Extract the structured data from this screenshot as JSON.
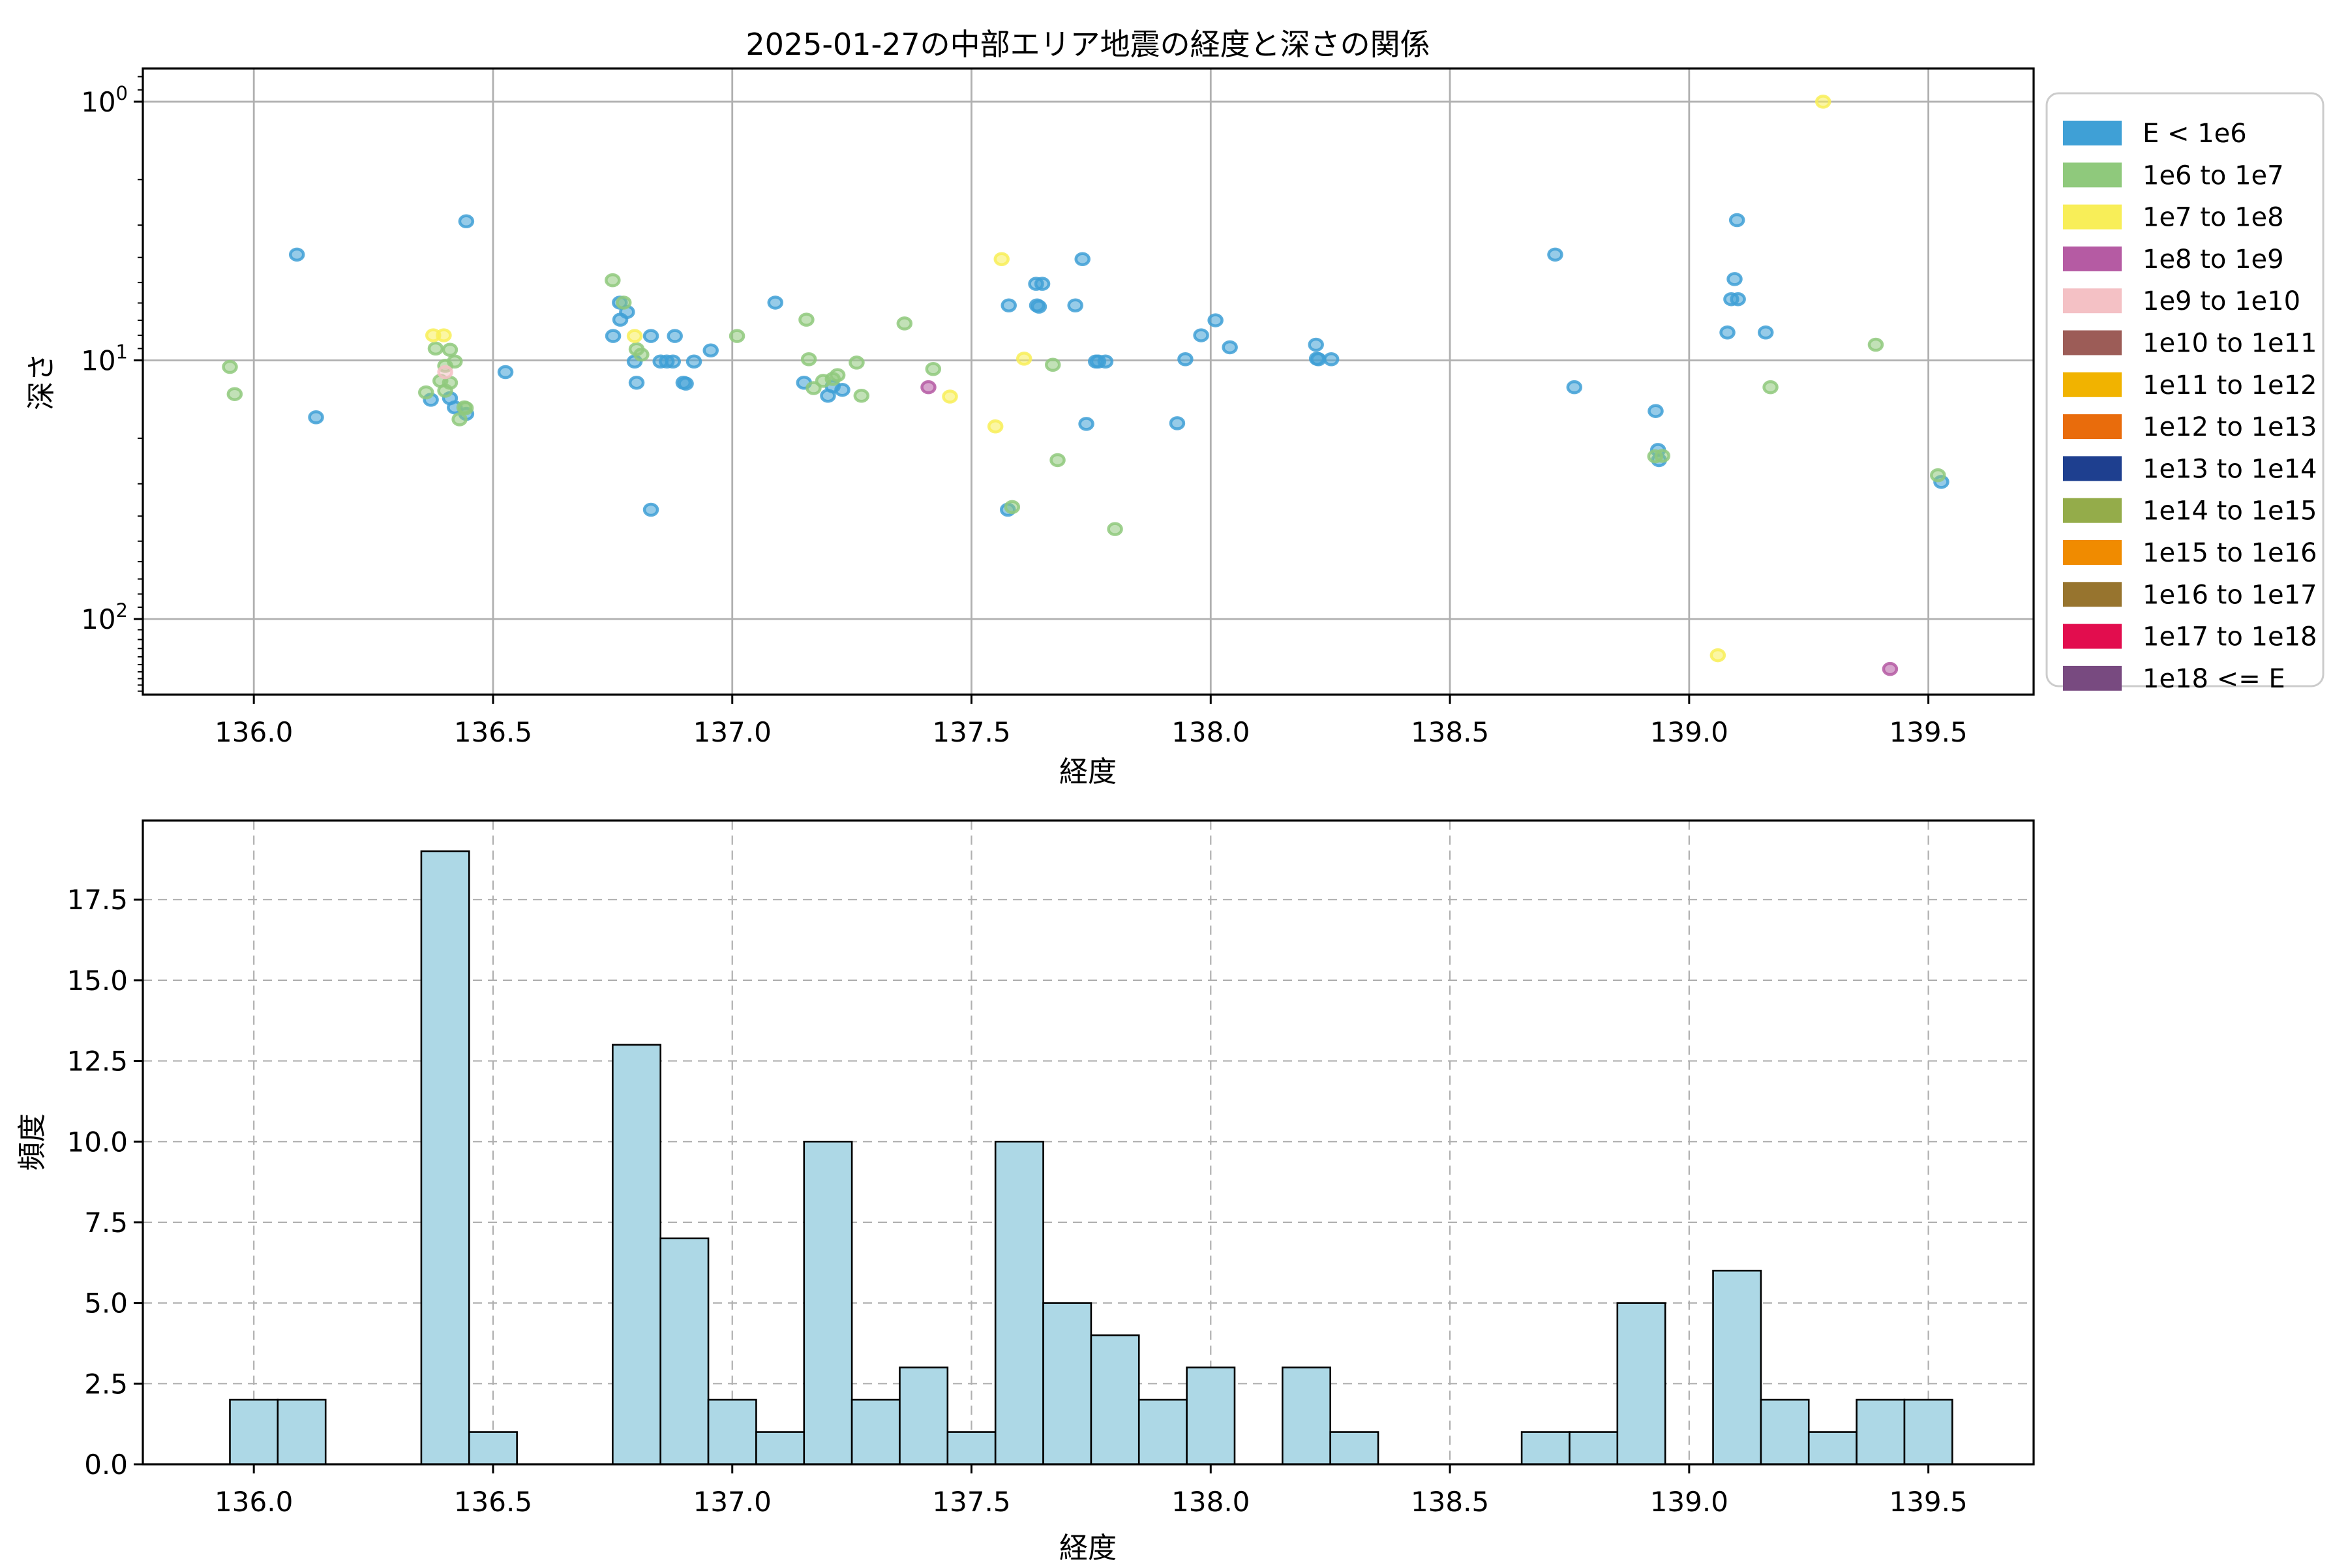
{
  "figure": {
    "title": "2025-01-27の中部エリア地震の経度と深さの関係",
    "background_color": "#ffffff",
    "grid_color": "#b0b0b0",
    "spine_color": "#000000"
  },
  "legend": {
    "items": [
      {
        "label": "E < 1e6",
        "color": "#3fa0d6"
      },
      {
        "label": "1e6 to 1e7",
        "color": "#8fc97c"
      },
      {
        "label": "1e7 to 1e8",
        "color": "#f8ee58"
      },
      {
        "label": "1e8 to 1e9",
        "color": "#b55ba3"
      },
      {
        "label": "1e9 to 1e10",
        "color": "#f4c1c5"
      },
      {
        "label": "1e10 to 1e11",
        "color": "#9c5c57"
      },
      {
        "label": "1e11 to 1e12",
        "color": "#f1b300"
      },
      {
        "label": "1e12 to 1e13",
        "color": "#e96c0c"
      },
      {
        "label": "1e13 to 1e14",
        "color": "#1e3f8f"
      },
      {
        "label": "1e14 to 1e15",
        "color": "#94ac4a"
      },
      {
        "label": "1e15 to 1e16",
        "color": "#f08b00"
      },
      {
        "label": "1e16 to 1e17",
        "color": "#97742e"
      },
      {
        "label": "1e17 to 1e18",
        "color": "#e20d4e"
      },
      {
        "label": "1e18 <= E",
        "color": "#784a80"
      }
    ]
  },
  "chart_data": [
    {
      "type": "scatter",
      "title": "2025-01-27の中部エリア地震の経度と深さの関係",
      "xlabel": "経度",
      "ylabel": "深さ",
      "xlim": [
        135.768,
        139.72
      ],
      "ylim": [
        0.744,
        196
      ],
      "y_scale": "log-inverted (depth increases downward)",
      "grid": "solid",
      "legend_position": "outside-right",
      "x_ticks": [
        {
          "value": 136.0,
          "label": "136.0"
        },
        {
          "value": 136.5,
          "label": "136.5"
        },
        {
          "value": 137.0,
          "label": "137.0"
        },
        {
          "value": 137.5,
          "label": "137.5"
        },
        {
          "value": 138.0,
          "label": "138.0"
        },
        {
          "value": 138.5,
          "label": "138.5"
        },
        {
          "value": 139.0,
          "label": "139.0"
        },
        {
          "value": 139.5,
          "label": "139.5"
        }
      ],
      "y_ticks": [
        {
          "value": 1,
          "base": "10",
          "exp": "0"
        },
        {
          "value": 10,
          "base": "10",
          "exp": "1"
        },
        {
          "value": 100,
          "base": "10",
          "exp": "2"
        }
      ],
      "y_minor_ticks": [
        0.8,
        0.9,
        2,
        3,
        4,
        5,
        6,
        7,
        8,
        9,
        20,
        30,
        40,
        50,
        60,
        70,
        80,
        90,
        110,
        120,
        130,
        140,
        150,
        160,
        170,
        180,
        190
      ],
      "series": [
        {
          "name": "E < 1e6",
          "color": "#3fa0d6",
          "points": [
            [
              136.444,
              2.9
            ],
            [
              136.09,
              3.9
            ],
            [
              136.13,
              16.6
            ],
            [
              136.37,
              14.2
            ],
            [
              136.42,
              15.2
            ],
            [
              136.444,
              16.1
            ],
            [
              136.41,
              14.0
            ],
            [
              136.526,
              11.1
            ],
            [
              136.765,
              5.98
            ],
            [
              136.766,
              6.96
            ],
            [
              136.751,
              8.05
            ],
            [
              136.78,
              6.5
            ],
            [
              136.83,
              8.05
            ],
            [
              136.88,
              8.05
            ],
            [
              136.796,
              10.1
            ],
            [
              136.8,
              12.2
            ],
            [
              136.85,
              10.1
            ],
            [
              136.863,
              10.1
            ],
            [
              136.876,
              10.1
            ],
            [
              136.898,
              12.2
            ],
            [
              136.903,
              12.3
            ],
            [
              136.92,
              10.1
            ],
            [
              136.955,
              9.15
            ],
            [
              136.83,
              37.8
            ],
            [
              137.09,
              5.98
            ],
            [
              137.15,
              12.2
            ],
            [
              137.21,
              12.6
            ],
            [
              137.2,
              13.7
            ],
            [
              137.23,
              13.0
            ],
            [
              137.732,
              4.06
            ],
            [
              137.635,
              5.06
            ],
            [
              137.648,
              5.06
            ],
            [
              137.578,
              6.13
            ],
            [
              137.637,
              6.13
            ],
            [
              137.641,
              6.2
            ],
            [
              137.717,
              6.13
            ],
            [
              137.76,
              10.1
            ],
            [
              137.765,
              10.1
            ],
            [
              137.78,
              10.1
            ],
            [
              137.74,
              17.6
            ],
            [
              137.576,
              37.8
            ],
            [
              137.93,
              17.5
            ],
            [
              137.947,
              9.9
            ],
            [
              137.98,
              8.0
            ],
            [
              138.01,
              7.0
            ],
            [
              138.04,
              8.9
            ],
            [
              138.22,
              8.7
            ],
            [
              138.225,
              9.9
            ],
            [
              138.222,
              9.85
            ],
            [
              138.252,
              9.9
            ],
            [
              138.72,
              3.9
            ],
            [
              138.76,
              12.7
            ],
            [
              138.93,
              15.7
            ],
            [
              138.935,
              22.2
            ],
            [
              138.937,
              24.3
            ],
            [
              139.1,
              2.87
            ],
            [
              139.095,
              4.85
            ],
            [
              139.088,
              5.8
            ],
            [
              139.102,
              5.8
            ],
            [
              139.08,
              7.8
            ],
            [
              139.16,
              7.8
            ],
            [
              139.527,
              29.5
            ]
          ]
        },
        {
          "name": "1e6 to 1e7",
          "color": "#8fc97c",
          "points": [
            [
              135.95,
              10.6
            ],
            [
              135.96,
              13.5
            ],
            [
              136.41,
              9.1
            ],
            [
              136.42,
              10.1
            ],
            [
              136.41,
              12.2
            ],
            [
              136.36,
              13.3
            ],
            [
              136.4,
              13.1
            ],
            [
              136.44,
              15.2
            ],
            [
              136.443,
              15.3
            ],
            [
              136.43,
              16.9
            ],
            [
              136.38,
              9.0
            ],
            [
              136.39,
              12.0
            ],
            [
              136.4,
              10.5
            ],
            [
              136.75,
              4.9
            ],
            [
              136.773,
              5.98
            ],
            [
              136.8,
              9.05
            ],
            [
              136.81,
              9.5
            ],
            [
              137.01,
              8.05
            ],
            [
              137.155,
              6.96
            ],
            [
              137.16,
              9.9
            ],
            [
              137.17,
              12.8
            ],
            [
              137.22,
              11.4
            ],
            [
              137.19,
              12.0
            ],
            [
              137.21,
              11.8
            ],
            [
              137.26,
              10.2
            ],
            [
              137.27,
              13.7
            ],
            [
              137.36,
              7.2
            ],
            [
              137.42,
              10.8
            ],
            [
              137.67,
              10.4
            ],
            [
              137.68,
              24.3
            ],
            [
              137.585,
              36.9
            ],
            [
              137.8,
              44.9
            ],
            [
              138.929,
              23.5
            ],
            [
              138.944,
              23.4
            ],
            [
              139.17,
              12.7
            ],
            [
              139.39,
              8.7
            ],
            [
              139.52,
              27.8
            ]
          ]
        },
        {
          "name": "1e7 to 1e8",
          "color": "#f8ee58",
          "points": [
            [
              136.375,
              8.0
            ],
            [
              136.397,
              8.0
            ],
            [
              136.796,
              8.05
            ],
            [
              137.455,
              13.8
            ],
            [
              137.563,
              4.06
            ],
            [
              137.61,
              9.85
            ],
            [
              137.55,
              18.0
            ],
            [
              139.06,
              138.0
            ],
            [
              139.28,
              1.0
            ]
          ]
        },
        {
          "name": "1e8 to 1e9",
          "color": "#b55ba3",
          "points": [
            [
              137.41,
              12.7
            ],
            [
              139.42,
              156.0
            ]
          ]
        },
        {
          "name": "1e9 to 1e10",
          "color": "#f4c1c5",
          "points": [
            [
              136.4,
              11.1
            ]
          ]
        }
      ]
    },
    {
      "type": "bar",
      "title": "",
      "xlabel": "経度",
      "ylabel": "頻度",
      "xlim": [
        135.768,
        139.72
      ],
      "ylim": [
        0,
        19.95
      ],
      "grid": "dashed",
      "bar_color": "#add8e6",
      "bar_edge_color": "#000000",
      "bin_width": 0.1,
      "x_ticks": [
        {
          "value": 136.0,
          "label": "136.0"
        },
        {
          "value": 136.5,
          "label": "136.5"
        },
        {
          "value": 137.0,
          "label": "137.0"
        },
        {
          "value": 137.5,
          "label": "137.5"
        },
        {
          "value": 138.0,
          "label": "138.0"
        },
        {
          "value": 138.5,
          "label": "138.5"
        },
        {
          "value": 139.0,
          "label": "139.0"
        },
        {
          "value": 139.5,
          "label": "139.5"
        }
      ],
      "y_ticks": [
        {
          "value": 0,
          "label": "0.0"
        },
        {
          "value": 2.5,
          "label": "2.5"
        },
        {
          "value": 5,
          "label": "5.0"
        },
        {
          "value": 7.5,
          "label": "7.5"
        },
        {
          "value": 10,
          "label": "10.0"
        },
        {
          "value": 12.5,
          "label": "12.5"
        },
        {
          "value": 15,
          "label": "15.0"
        },
        {
          "value": 17.5,
          "label": "17.5"
        }
      ],
      "bins": [
        {
          "start": 135.95,
          "count": 2
        },
        {
          "start": 136.05,
          "count": 2
        },
        {
          "start": 136.35,
          "count": 19
        },
        {
          "start": 136.45,
          "count": 1
        },
        {
          "start": 136.75,
          "count": 13
        },
        {
          "start": 136.85,
          "count": 7
        },
        {
          "start": 136.95,
          "count": 2
        },
        {
          "start": 137.05,
          "count": 1
        },
        {
          "start": 137.15,
          "count": 10
        },
        {
          "start": 137.25,
          "count": 2
        },
        {
          "start": 137.35,
          "count": 3
        },
        {
          "start": 137.45,
          "count": 1
        },
        {
          "start": 137.55,
          "count": 10
        },
        {
          "start": 137.65,
          "count": 5
        },
        {
          "start": 137.75,
          "count": 4
        },
        {
          "start": 137.85,
          "count": 2
        },
        {
          "start": 137.95,
          "count": 3
        },
        {
          "start": 138.15,
          "count": 3
        },
        {
          "start": 138.25,
          "count": 1
        },
        {
          "start": 138.65,
          "count": 1
        },
        {
          "start": 138.75,
          "count": 1
        },
        {
          "start": 138.85,
          "count": 5
        },
        {
          "start": 139.05,
          "count": 6
        },
        {
          "start": 139.15,
          "count": 2
        },
        {
          "start": 139.25,
          "count": 1
        },
        {
          "start": 139.35,
          "count": 2
        },
        {
          "start": 139.45,
          "count": 2
        }
      ]
    }
  ]
}
